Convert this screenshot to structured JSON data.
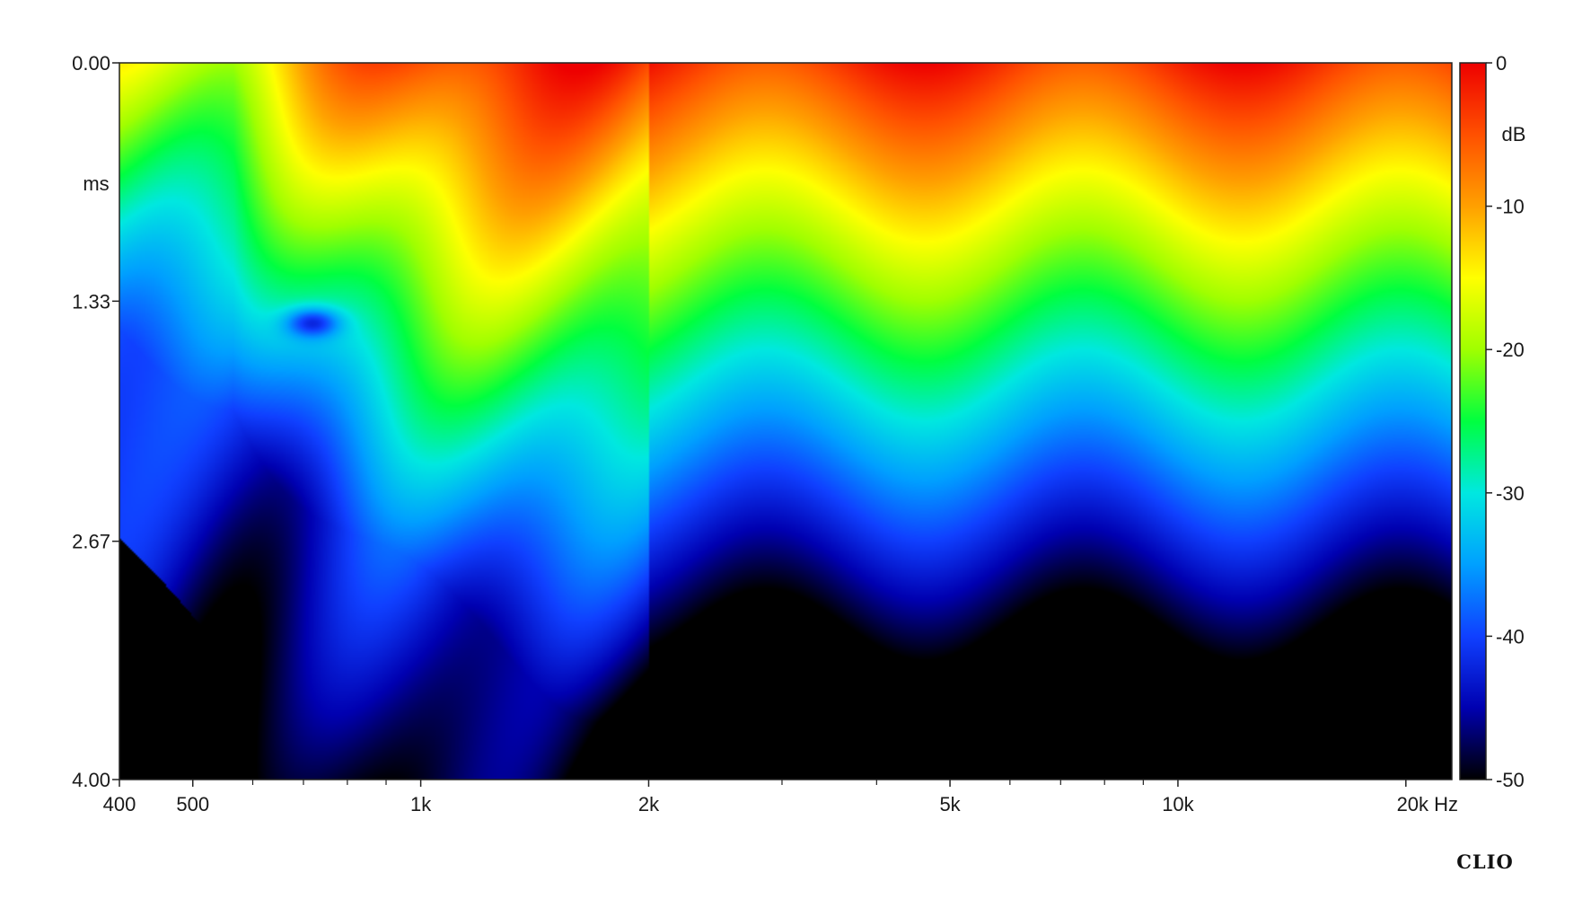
{
  "chart_data": {
    "type": "heatmap",
    "title": "",
    "x_axis": {
      "scale": "log",
      "range": [
        400,
        23000
      ],
      "unit": "Hz",
      "tick_labels": [
        {
          "value": 400,
          "label": "400"
        },
        {
          "value": 500,
          "label": "500"
        },
        {
          "value": 1000,
          "label": "1k"
        },
        {
          "value": 2000,
          "label": "2k"
        },
        {
          "value": 5000,
          "label": "5k"
        },
        {
          "value": 10000,
          "label": "10k"
        },
        {
          "value": 20000,
          "label": "20k Hz"
        }
      ],
      "minor_ticks": [
        600,
        700,
        800,
        900,
        3000,
        4000,
        6000,
        7000,
        8000,
        9000
      ]
    },
    "y_axis": {
      "label": "ms",
      "range": [
        0,
        4
      ],
      "tick_labels": [
        {
          "value": 0,
          "label": "0.00"
        },
        {
          "value": 1.33,
          "label": "1.33"
        },
        {
          "value": 2.67,
          "label": "2.67"
        },
        {
          "value": 4,
          "label": "4.00"
        }
      ]
    },
    "colorbar": {
      "unit": "dB",
      "range": [
        -50,
        0
      ],
      "tick_labels": [
        {
          "value": 0,
          "label": "0"
        },
        {
          "value": -10,
          "label": "-10"
        },
        {
          "value": -20,
          "label": "-20"
        },
        {
          "value": -30,
          "label": "-30"
        },
        {
          "value": -40,
          "label": "-40"
        },
        {
          "value": -50,
          "label": "-50"
        }
      ],
      "colors": [
        "#000000",
        "#0000b0",
        "#1040ff",
        "#00a0ff",
        "#00e8e0",
        "#00ff40",
        "#a0ff00",
        "#ffff00",
        "#ffa000",
        "#ff5000",
        "#ee0000"
      ]
    },
    "ridges_hz": [
      2800,
      3300,
      3900,
      4500,
      5200,
      5800,
      6900,
      8000,
      8800,
      9700,
      11500,
      13500,
      15500,
      17500,
      19500,
      22000
    ],
    "logo": "CLIO"
  }
}
